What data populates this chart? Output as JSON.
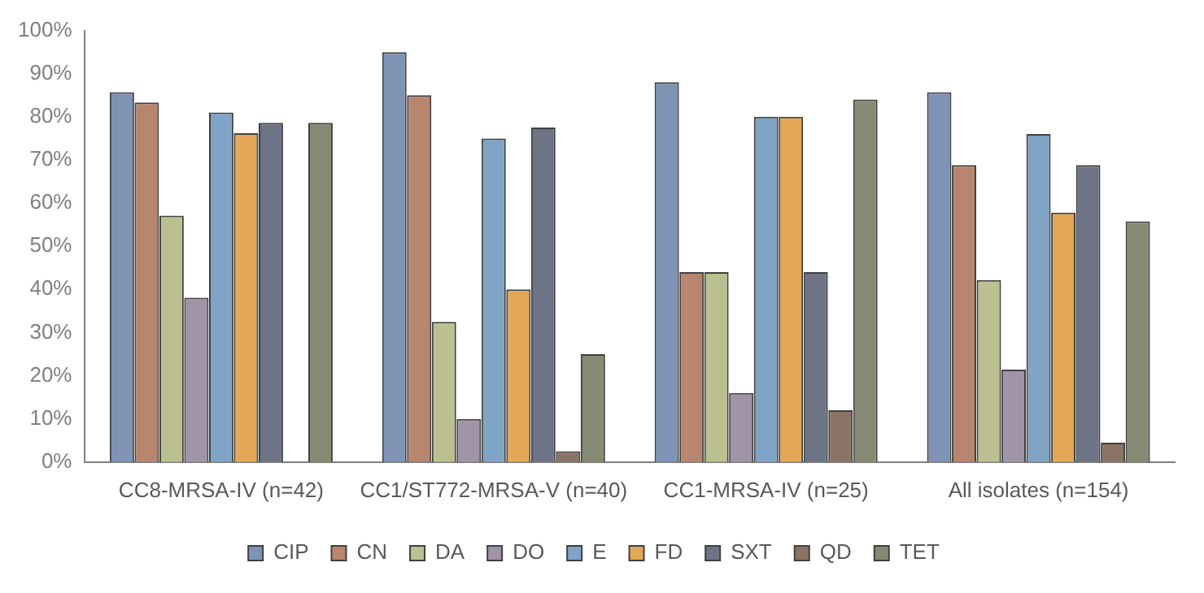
{
  "chart_data": {
    "type": "bar",
    "categories": [
      "CC8-MRSA-IV (n=42)",
      "CC1/ST772-MRSA-V (n=40)",
      "CC1-MRSA-IV (n=25)",
      "All isolates (n=154)"
    ],
    "series": [
      {
        "name": "CIP",
        "color": "#7f93b5",
        "values": [
          85.7,
          95,
          88,
          85.7
        ]
      },
      {
        "name": "CN",
        "color": "#b8866e",
        "values": [
          83.3,
          85,
          44,
          68.8
        ]
      },
      {
        "name": "DA",
        "color": "#bcbf90",
        "values": [
          57.1,
          32.5,
          44,
          42.2
        ]
      },
      {
        "name": "DO",
        "color": "#a294a8",
        "values": [
          38.1,
          10,
          16,
          21.4
        ]
      },
      {
        "name": "E",
        "color": "#7fa4c6",
        "values": [
          81,
          75,
          80,
          76
        ]
      },
      {
        "name": "FD",
        "color": "#e2a857",
        "values": [
          76.2,
          40,
          80,
          57.8
        ]
      },
      {
        "name": "SXT",
        "color": "#6e7386",
        "values": [
          78.6,
          77.5,
          44,
          68.8
        ]
      },
      {
        "name": "QD",
        "color": "#8a7466",
        "values": [
          0,
          2.5,
          12,
          4.5
        ]
      },
      {
        "name": "TET",
        "color": "#868a73",
        "values": [
          78.6,
          25,
          84,
          55.8
        ]
      }
    ],
    "ylim": [
      0,
      100
    ],
    "yticks": [
      {
        "value": 0,
        "label": "0%"
      },
      {
        "value": 10,
        "label": "10%"
      },
      {
        "value": 20,
        "label": "20%"
      },
      {
        "value": 30,
        "label": "30%"
      },
      {
        "value": 40,
        "label": "40%"
      },
      {
        "value": 50,
        "label": "50%"
      },
      {
        "value": 60,
        "label": "60%"
      },
      {
        "value": 70,
        "label": "70%"
      },
      {
        "value": 80,
        "label": "80%"
      },
      {
        "value": 90,
        "label": "90%"
      },
      {
        "value": 100,
        "label": "100%"
      }
    ],
    "grid": false,
    "legend": "bottom"
  }
}
